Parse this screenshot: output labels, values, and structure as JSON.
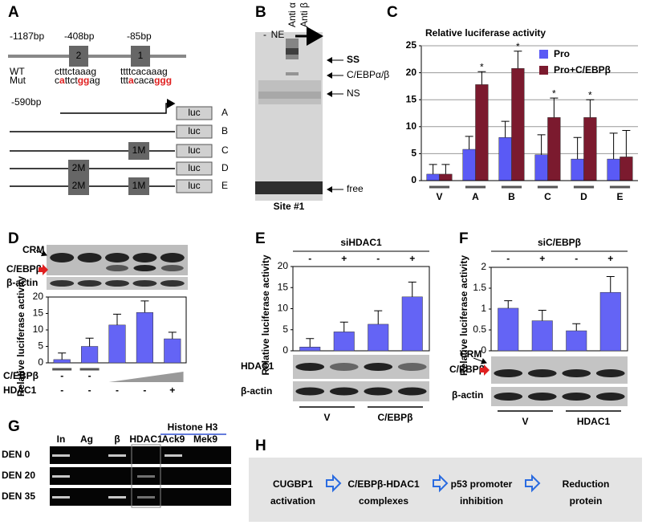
{
  "panels": {
    "A": {
      "letter": "A",
      "positions": [
        "-1187bp",
        "-408bp",
        "-85bp"
      ],
      "sites": [
        "2",
        "1"
      ],
      "wt_label": "WT",
      "mut_label": "Mut",
      "wt_seqs": [
        "ctttctaaag",
        "ttttcacaaag"
      ],
      "mut_seqs": [
        [
          "c",
          "a",
          "ttct",
          "gg",
          "ag"
        ],
        [
          "ttt",
          "a",
          "caca",
          "ggg"
        ]
      ],
      "start": "-590bp",
      "reporter": "luc",
      "constructs": [
        {
          "name": "A",
          "mutations": []
        },
        {
          "name": "B",
          "mutations": []
        },
        {
          "name": "C",
          "mutations": [
            "1M"
          ]
        },
        {
          "name": "D",
          "mutations": [
            "2M"
          ]
        },
        {
          "name": "E",
          "mutations": [
            "2M",
            "1M"
          ]
        }
      ]
    },
    "B": {
      "letter": "B",
      "lanes": [
        "-",
        "NE",
        "Anti α",
        "Anti β"
      ],
      "bands": [
        "SS",
        "C/EBPα/β",
        "NS",
        "free"
      ],
      "site": "Site #1"
    },
    "G": {
      "letter": "G",
      "lanes": [
        "In",
        "Ag",
        "β",
        "HDAC1",
        "Ack9",
        "Mek9"
      ],
      "group": "Histone H3",
      "rows": [
        "DEN 0",
        "DEN 20",
        "DEN 35"
      ]
    },
    "H": {
      "letter": "H",
      "steps": [
        {
          "name": "CUGBP1",
          "note": "activation"
        },
        {
          "name": "C/EBPβ-HDAC1",
          "note": "complexes"
        },
        {
          "name": "p53 promoter",
          "note": "inhibition"
        },
        {
          "name": "Reduction",
          "note": "protein"
        }
      ]
    }
  },
  "chart_data": [
    {
      "letter": "C",
      "type": "bar",
      "title": "Relative luciferase activity",
      "categories": [
        "V",
        "A",
        "B",
        "C",
        "D",
        "E"
      ],
      "series": [
        {
          "name": "Pro",
          "color": "#5a5af5",
          "values": [
            1.2,
            5.8,
            8,
            4.8,
            4,
            4
          ],
          "errors": [
            1.8,
            2.4,
            3,
            3.7,
            4,
            4.8
          ]
        },
        {
          "name": "Pro+C/EBPβ",
          "color": "#7b1a2e",
          "values": [
            1.2,
            17.8,
            20.8,
            11.7,
            11.7,
            4.4
          ],
          "errors": [
            1.8,
            2.4,
            3.2,
            3.6,
            3.3,
            4.9
          ],
          "marks": [
            null,
            "*",
            "*",
            "*",
            "*",
            null
          ],
          "mark_color": "#ff2020"
        }
      ],
      "ylim": [
        0,
        25
      ],
      "yticks": [
        0,
        5,
        10,
        15,
        20,
        25
      ],
      "grid": true,
      "legend": "top-right"
    },
    {
      "letter": "D",
      "type": "bar",
      "blot_labels": [
        "CRM",
        "C/EBPβ",
        "β-actin"
      ],
      "ylabel": "Relative luciferase activity",
      "values": [
        1,
        5,
        11.5,
        15.3,
        7.3
      ],
      "errors": [
        2,
        2.5,
        3.3,
        3.5,
        2
      ],
      "color": "#6464f5",
      "ylim": [
        0,
        20
      ],
      "yticks": [
        0,
        5,
        10,
        15,
        20
      ],
      "rows": [
        {
          "label": "C/EBPβ",
          "values": [
            "-",
            "-",
            null,
            null,
            null
          ]
        },
        {
          "label": "HDAC1",
          "values": [
            "-",
            "-",
            "-",
            "-",
            "+"
          ]
        }
      ]
    },
    {
      "letter": "E",
      "type": "bar",
      "title": "siHDAC1",
      "categories": [
        "-",
        "+",
        "-",
        "+"
      ],
      "ylabel": "Relative luciferase activity",
      "values": [
        0.9,
        4.5,
        6.3,
        12.8
      ],
      "errors": [
        2,
        2.3,
        3.2,
        3.5
      ],
      "color": "#6464f5",
      "ylim": [
        0,
        20
      ],
      "yticks": [
        0,
        5,
        10,
        15,
        20
      ],
      "blot_labels": [
        "HDAC1",
        "β-actin"
      ],
      "groups": [
        "V",
        "C/EBPβ"
      ]
    },
    {
      "letter": "F",
      "type": "bar",
      "title": "siC/EBPβ",
      "categories": [
        "-",
        "+",
        "-",
        "+"
      ],
      "ylabel": "Relative luciferase activity",
      "values": [
        1.02,
        0.72,
        0.48,
        1.4
      ],
      "errors": [
        0.18,
        0.25,
        0.17,
        0.38
      ],
      "color": "#6464f5",
      "ylim": [
        0,
        2
      ],
      "yticks": [
        0,
        0.5,
        1,
        1.5,
        2
      ],
      "blot_labels": [
        "CRM",
        "C/EBPβ",
        "β-actin"
      ],
      "groups": [
        "V",
        "HDAC1"
      ]
    }
  ]
}
